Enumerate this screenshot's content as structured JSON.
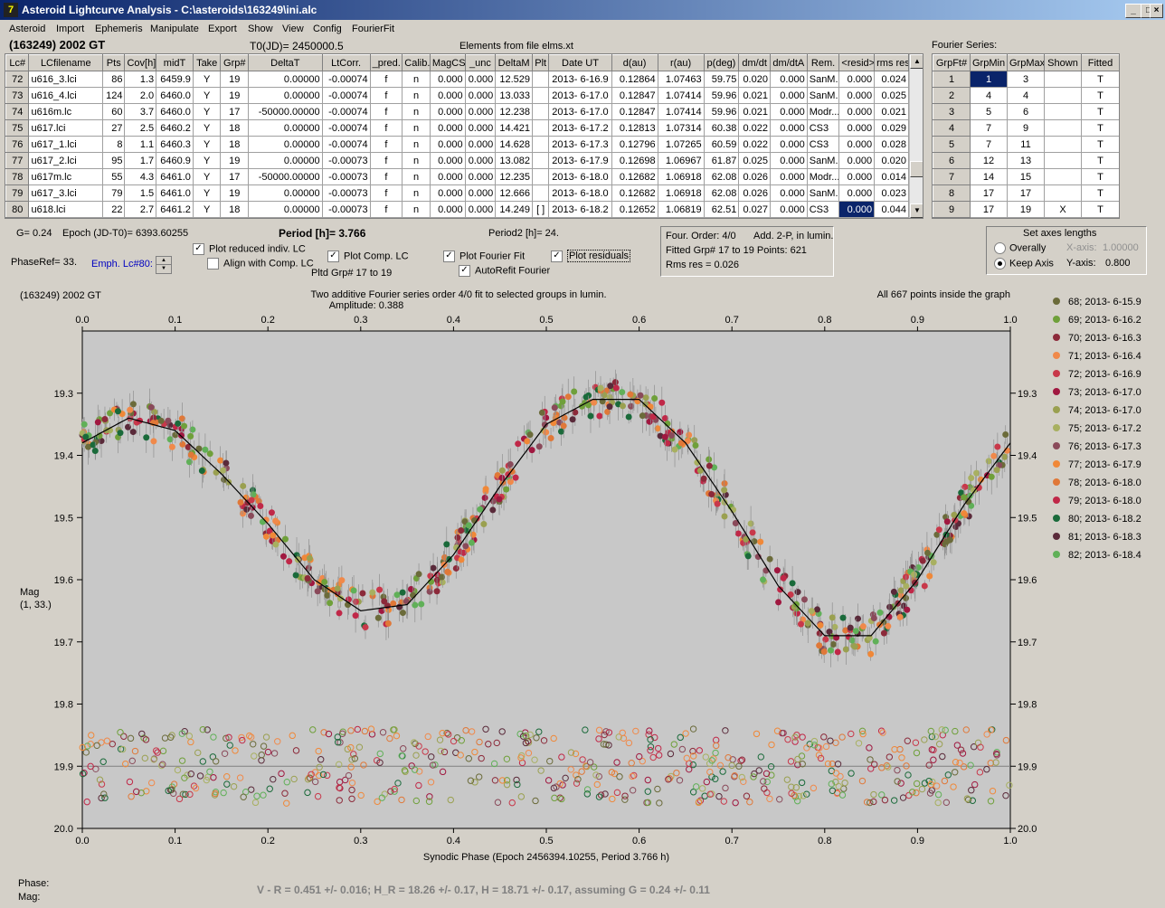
{
  "window": {
    "title": "Asteroid Lightcurve Analysis - C:\\asteroids\\163249\\ini.alc",
    "icon": "app-icon"
  },
  "menu": [
    "Asteroid",
    "Import",
    "Ephemeris",
    "Manipulate",
    "Export",
    "Show",
    "View",
    "Config",
    "FourierFit"
  ],
  "asteroid_name": "(163249) 2002 GT",
  "t0": "T0(JD)= 2450000.5",
  "elements_note": "Elements from file elms.xt",
  "lc_table": {
    "headers": [
      "Lc#",
      "LCfilename",
      "Pts",
      "Cov[h]",
      "midT",
      "Take",
      "Grp#",
      "DeltaT",
      "LtCorr.",
      "_pred.",
      "Calib.",
      "MagCS",
      "_unc",
      "DeltaM",
      "Plt",
      "Date UT",
      "d(au)",
      "r(au)",
      "p(deg)",
      "dm/dt",
      "dm/dtA",
      "Rem.",
      "<resid>",
      "rms res"
    ],
    "rows": [
      [
        "72",
        "u616_3.lci",
        "86",
        "1.3",
        "6459.9",
        "Y",
        "19",
        "0.00000",
        "-0.00074",
        "f",
        "n",
        "0.000",
        "0.000",
        "12.529",
        "",
        "2013- 6-16.9",
        "0.12864",
        "1.07463",
        "59.75",
        "0.020",
        "0.000",
        "SanM..",
        "0.000",
        "0.024"
      ],
      [
        "73",
        "u616_4.lci",
        "124",
        "2.0",
        "6460.0",
        "Y",
        "19",
        "0.00000",
        "-0.00074",
        "f",
        "n",
        "0.000",
        "0.000",
        "13.033",
        "",
        "2013- 6-17.0",
        "0.12847",
        "1.07414",
        "59.96",
        "0.021",
        "0.000",
        "SanM..",
        "0.000",
        "0.025"
      ],
      [
        "74",
        "u616m.lc",
        "60",
        "3.7",
        "6460.0",
        "Y",
        "17",
        "-50000.00000",
        "-0.00074",
        "f",
        "n",
        "0.000",
        "0.000",
        "12.238",
        "",
        "2013- 6-17.0",
        "0.12847",
        "1.07414",
        "59.96",
        "0.021",
        "0.000",
        "Modr...",
        "0.000",
        "0.021"
      ],
      [
        "75",
        "u617.lci",
        "27",
        "2.5",
        "6460.2",
        "Y",
        "18",
        "0.00000",
        "-0.00074",
        "f",
        "n",
        "0.000",
        "0.000",
        "14.421",
        "",
        "2013- 6-17.2",
        "0.12813",
        "1.07314",
        "60.38",
        "0.022",
        "0.000",
        "CS3",
        "0.000",
        "0.029"
      ],
      [
        "76",
        "u617_1.lci",
        "8",
        "1.1",
        "6460.3",
        "Y",
        "18",
        "0.00000",
        "-0.00074",
        "f",
        "n",
        "0.000",
        "0.000",
        "14.628",
        "",
        "2013- 6-17.3",
        "0.12796",
        "1.07265",
        "60.59",
        "0.022",
        "0.000",
        "CS3",
        "0.000",
        "0.028"
      ],
      [
        "77",
        "u617_2.lci",
        "95",
        "1.7",
        "6460.9",
        "Y",
        "19",
        "0.00000",
        "-0.00073",
        "f",
        "n",
        "0.000",
        "0.000",
        "13.082",
        "",
        "2013- 6-17.9",
        "0.12698",
        "1.06967",
        "61.87",
        "0.025",
        "0.000",
        "SanM..",
        "0.000",
        "0.020"
      ],
      [
        "78",
        "u617m.lc",
        "55",
        "4.3",
        "6461.0",
        "Y",
        "17",
        "-50000.00000",
        "-0.00073",
        "f",
        "n",
        "0.000",
        "0.000",
        "12.235",
        "",
        "2013- 6-18.0",
        "0.12682",
        "1.06918",
        "62.08",
        "0.026",
        "0.000",
        "Modr...",
        "0.000",
        "0.014"
      ],
      [
        "79",
        "u617_3.lci",
        "79",
        "1.5",
        "6461.0",
        "Y",
        "19",
        "0.00000",
        "-0.00073",
        "f",
        "n",
        "0.000",
        "0.000",
        "12.666",
        "",
        "2013- 6-18.0",
        "0.12682",
        "1.06918",
        "62.08",
        "0.026",
        "0.000",
        "SanM..",
        "0.000",
        "0.023"
      ],
      [
        "80",
        "u618.lci",
        "22",
        "2.7",
        "6461.2",
        "Y",
        "18",
        "0.00000",
        "-0.00073",
        "f",
        "n",
        "0.000",
        "0.000",
        "14.249",
        "[ ]",
        "2013- 6-18.2",
        "0.12652",
        "1.06819",
        "62.51",
        "0.027",
        "0.000",
        "CS3",
        "0.000",
        "0.044"
      ]
    ]
  },
  "fourier_series": {
    "label": "Fourier Series:",
    "headers": [
      "GrpFt#",
      "GrpMin",
      "GrpMax",
      "Shown",
      "Fitted"
    ],
    "rows": [
      [
        "1",
        "1",
        "3",
        "",
        "T"
      ],
      [
        "2",
        "4",
        "4",
        "",
        "T"
      ],
      [
        "3",
        "5",
        "6",
        "",
        "T"
      ],
      [
        "4",
        "7",
        "9",
        "",
        "T"
      ],
      [
        "5",
        "7",
        "11",
        "",
        "T"
      ],
      [
        "6",
        "12",
        "13",
        "",
        "T"
      ],
      [
        "7",
        "14",
        "15",
        "",
        "T"
      ],
      [
        "8",
        "17",
        "17",
        "",
        "T"
      ],
      [
        "9",
        "17",
        "19",
        "X",
        "T"
      ]
    ]
  },
  "controls": {
    "g_label": "G= 0.24",
    "epoch_label": "Epoch (JD-T0)= 6393.60255",
    "period_label": "Period [h]= 3.766",
    "period2_label": "Period2 [h]= 24.",
    "phaseref_label": "PhaseRef= 33.",
    "emph_label": "Emph. Lc#80:",
    "plot_reduced": "Plot reduced indiv. LC",
    "align_comp": "Align with Comp. LC",
    "plot_comp": "Plot Comp. LC",
    "pltd_grp": "Pltd Grp#  17 to   19",
    "plot_fourier": "Plot Fourier Fit",
    "autorefit": "AutoRefit Fourier",
    "plot_residuals": "Plot residuals"
  },
  "fourier_info": {
    "order": "Four. Order:  4/0",
    "add": "Add. 2-P,  in lumin.",
    "fitted": "Fitted Grp# 17 to 19 Points: 621",
    "rms": "Rms res     = 0.026"
  },
  "axes_lengths": {
    "title": "Set axes lengths",
    "overally": "Overally",
    "keep_axis": "Keep Axis",
    "xaxis_label": "X-axis:",
    "xaxis_value": "1.00000",
    "yaxis_label": "Y-axis:",
    "yaxis_value": "0.800"
  },
  "status": {
    "phase_label": "Phase:",
    "mag_label": "Mag:",
    "color_result": "V - R = 0.451 +/- 0.016; H_R = 18.26 +/- 0.17, H = 18.71 +/- 0.17, assuming G = 0.24 +/- 0.11"
  },
  "chart_data": {
    "type": "scatter",
    "corner_title": "(163249) 2002 GT",
    "title": "Two additive Fourier series order 4/0 fit to selected groups in lumin.",
    "subtitle": "Amplitude: 0.388",
    "right_note": "All 667 points inside the graph",
    "xlabel": "Synodic Phase (Epoch 2456394.10255, Period 3.766 h)",
    "ylabel": "Mag",
    "ylabel2": "(1, 33.)",
    "xlim": [
      0,
      1
    ],
    "ylim": [
      20.0,
      19.2
    ],
    "x_ticks": [
      "0.0",
      "0.1",
      "0.2",
      "0.3",
      "0.4",
      "0.5",
      "0.6",
      "0.7",
      "0.8",
      "0.9",
      "1.0"
    ],
    "y_ticks": [
      "19.3",
      "19.4",
      "19.5",
      "19.6",
      "19.7",
      "19.8",
      "19.9",
      "20.0"
    ],
    "residual_baseline": 19.9,
    "fourier_curve": {
      "x": [
        0.0,
        0.05,
        0.1,
        0.15,
        0.2,
        0.25,
        0.3,
        0.35,
        0.4,
        0.45,
        0.5,
        0.55,
        0.6,
        0.65,
        0.7,
        0.75,
        0.8,
        0.85,
        0.9,
        0.95,
        1.0
      ],
      "y": [
        19.38,
        19.34,
        19.36,
        19.43,
        19.51,
        19.6,
        19.65,
        19.64,
        19.56,
        19.45,
        19.35,
        19.31,
        19.31,
        19.38,
        19.49,
        19.61,
        19.69,
        19.69,
        19.6,
        19.48,
        19.38
      ]
    },
    "series": [
      {
        "name": "68; 2013- 6-15.9",
        "color": "#6b6b3a"
      },
      {
        "name": "69; 2013- 6-16.2",
        "color": "#6fa03a"
      },
      {
        "name": "70; 2013- 6-16.3",
        "color": "#8c2a3a"
      },
      {
        "name": "71; 2013- 6-16.4",
        "color": "#f0894a"
      },
      {
        "name": "72; 2013- 6-16.9",
        "color": "#c8384a"
      },
      {
        "name": "73; 2013- 6-17.0",
        "color": "#a01840"
      },
      {
        "name": "74; 2013- 6-17.0",
        "color": "#9aa050"
      },
      {
        "name": "75; 2013- 6-17.2",
        "color": "#a8b060"
      },
      {
        "name": "76; 2013- 6-17.3",
        "color": "#8a4a5a"
      },
      {
        "name": "77; 2013- 6-17.9",
        "color": "#f08838"
      },
      {
        "name": "78; 2013- 6-18.0",
        "color": "#e07838"
      },
      {
        "name": "79; 2013- 6-18.0",
        "color": "#c02848"
      },
      {
        "name": "80; 2013- 6-18.2",
        "color": "#1a6a3a"
      },
      {
        "name": "81; 2013- 6-18.3",
        "color": "#5a2a3a"
      },
      {
        "name": "82; 2013- 6-18.4",
        "color": "#60b058"
      }
    ]
  }
}
